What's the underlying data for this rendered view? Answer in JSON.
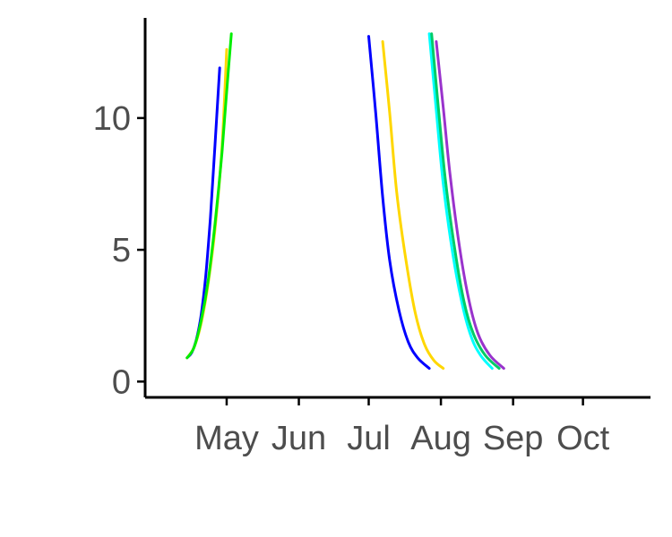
{
  "chart_data": {
    "type": "line",
    "title": "",
    "xlabel": "",
    "ylabel": "",
    "grid": false,
    "legend": "none",
    "xlim": [
      "2020-03-27",
      "2020-10-30"
    ],
    "ylim": [
      -0.6,
      13.8
    ],
    "x_ticks": [
      {
        "date": "2020-05-01",
        "label": "May"
      },
      {
        "date": "2020-06-01",
        "label": "Jun"
      },
      {
        "date": "2020-07-01",
        "label": "Jul"
      },
      {
        "date": "2020-08-01",
        "label": "Aug"
      },
      {
        "date": "2020-09-01",
        "label": "Sep"
      },
      {
        "date": "2020-10-01",
        "label": "Oct"
      }
    ],
    "y_ticks": [
      {
        "value": 0,
        "label": "0"
      },
      {
        "value": 5,
        "label": "5"
      },
      {
        "value": 10,
        "label": "10"
      }
    ],
    "series": [
      {
        "color": "#0000ff",
        "points": [
          [
            "2020-04-14",
            0.9
          ],
          [
            "2020-04-16",
            1.1
          ],
          [
            "2020-04-18",
            1.6
          ],
          [
            "2020-04-20",
            2.5
          ],
          [
            "2020-04-22",
            4.0
          ],
          [
            "2020-04-24",
            6.2
          ],
          [
            "2020-04-26",
            9.0
          ],
          [
            "2020-04-28",
            11.9
          ]
        ]
      },
      {
        "color": "#ffd700",
        "points": [
          [
            "2020-04-14",
            0.9
          ],
          [
            "2020-04-17",
            1.3
          ],
          [
            "2020-04-20",
            2.2
          ],
          [
            "2020-04-23",
            3.7
          ],
          [
            "2020-04-26",
            5.8
          ],
          [
            "2020-04-29",
            8.9
          ],
          [
            "2020-05-01",
            12.6
          ]
        ]
      },
      {
        "color": "#00ee00",
        "points": [
          [
            "2020-04-14",
            0.9
          ],
          [
            "2020-04-17",
            1.3
          ],
          [
            "2020-04-20",
            2.3
          ],
          [
            "2020-04-23",
            3.8
          ],
          [
            "2020-04-26",
            6.0
          ],
          [
            "2020-04-29",
            8.7
          ],
          [
            "2020-05-01",
            11.0
          ],
          [
            "2020-05-03",
            13.2
          ]
        ]
      },
      {
        "color": "#0000ff",
        "points": [
          [
            "2020-07-01",
            13.1
          ],
          [
            "2020-07-04",
            10.2
          ],
          [
            "2020-07-07",
            7.0
          ],
          [
            "2020-07-10",
            4.6
          ],
          [
            "2020-07-14",
            2.7
          ],
          [
            "2020-07-18",
            1.5
          ],
          [
            "2020-07-22",
            0.9
          ],
          [
            "2020-07-27",
            0.5
          ]
        ]
      },
      {
        "color": "#ffd700",
        "points": [
          [
            "2020-07-07",
            12.9
          ],
          [
            "2020-07-10",
            10.2
          ],
          [
            "2020-07-13",
            7.2
          ],
          [
            "2020-07-17",
            4.6
          ],
          [
            "2020-07-21",
            2.6
          ],
          [
            "2020-07-25",
            1.4
          ],
          [
            "2020-07-29",
            0.8
          ],
          [
            "2020-08-02",
            0.5
          ]
        ]
      },
      {
        "color": "#00ffff",
        "points": [
          [
            "2020-07-27",
            13.2
          ],
          [
            "2020-07-30",
            10.3
          ],
          [
            "2020-08-02",
            7.5
          ],
          [
            "2020-08-06",
            4.9
          ],
          [
            "2020-08-10",
            3.0
          ],
          [
            "2020-08-14",
            1.7
          ],
          [
            "2020-08-18",
            1.0
          ],
          [
            "2020-08-23",
            0.5
          ]
        ]
      },
      {
        "color": "#00cc66",
        "points": [
          [
            "2020-07-28",
            13.2
          ],
          [
            "2020-07-31",
            10.3
          ],
          [
            "2020-08-03",
            7.6
          ],
          [
            "2020-08-07",
            5.0
          ],
          [
            "2020-08-11",
            3.0
          ],
          [
            "2020-08-15",
            1.8
          ],
          [
            "2020-08-20",
            1.0
          ],
          [
            "2020-08-26",
            0.5
          ]
        ]
      },
      {
        "color": "#9933cc",
        "points": [
          [
            "2020-07-30",
            12.9
          ],
          [
            "2020-08-02",
            10.4
          ],
          [
            "2020-08-05",
            7.8
          ],
          [
            "2020-08-09",
            5.1
          ],
          [
            "2020-08-13",
            3.1
          ],
          [
            "2020-08-17",
            1.8
          ],
          [
            "2020-08-22",
            1.0
          ],
          [
            "2020-08-28",
            0.5
          ]
        ]
      }
    ]
  }
}
